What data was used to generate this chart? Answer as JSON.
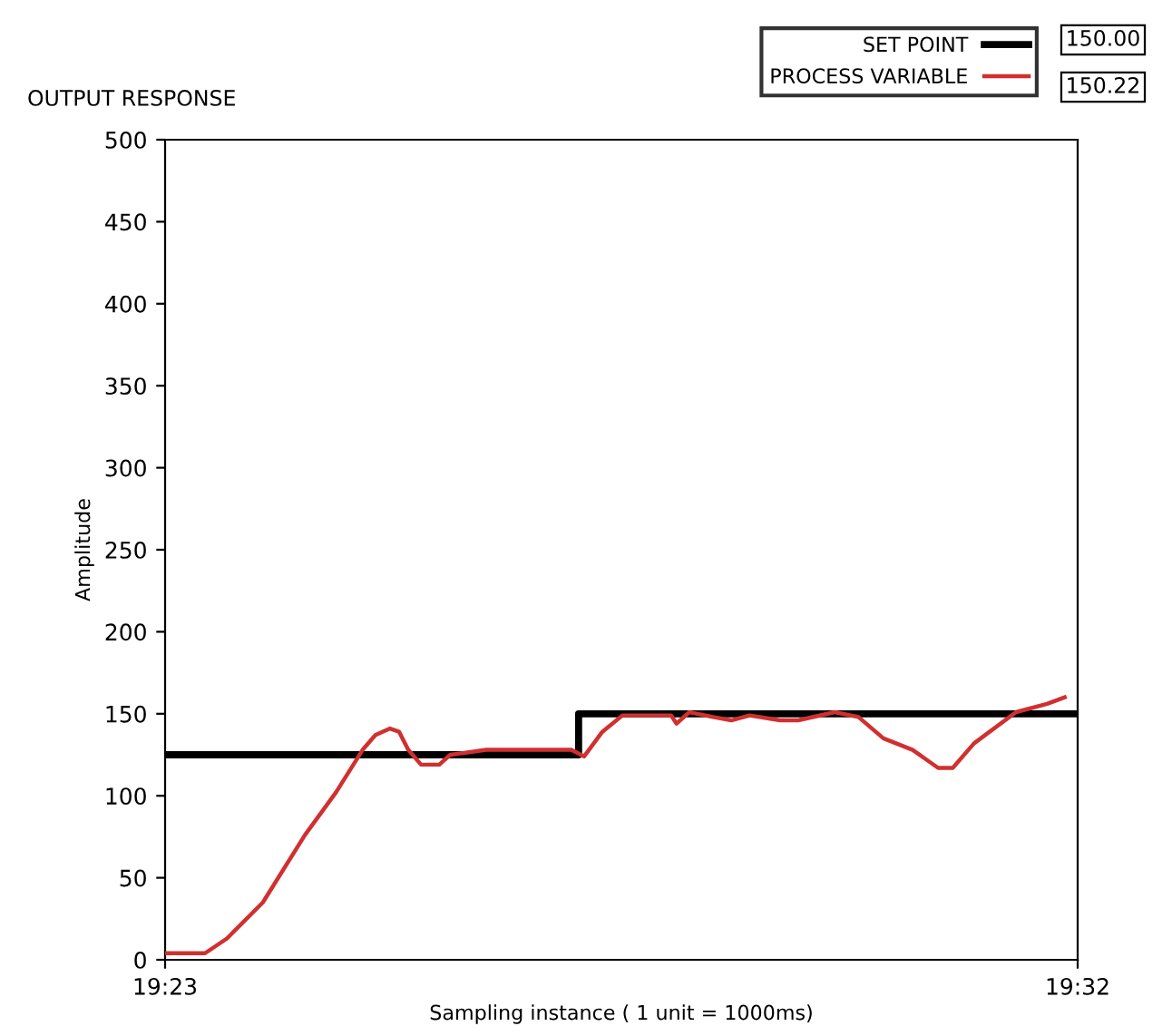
{
  "chart_data": {
    "type": "line",
    "title": "OUTPUT RESPONSE",
    "xlabel": "Sampling instance ( 1 unit = 1000ms)",
    "ylabel": "Amplitude",
    "xlim": [
      19.38333,
      19.53333
    ],
    "xticks": [
      {
        "value": 19.38333,
        "label": "19:23"
      },
      {
        "value": 19.53333,
        "label": "19:32"
      }
    ],
    "ylim": [
      0,
      500
    ],
    "yticks": [
      0,
      50,
      100,
      150,
      200,
      250,
      300,
      350,
      400,
      450,
      500
    ],
    "grid": false,
    "legend": "top right",
    "annotations": [
      "150.00",
      "150.22"
    ],
    "series": [
      {
        "name": "SET POINT",
        "color": "#000000",
        "x": [
          19.38333,
          19.4513,
          19.4513,
          19.53333
        ],
        "values": [
          125,
          125,
          150,
          150
        ]
      },
      {
        "name": "PROCESS VARIABLE",
        "color": "#d03030",
        "x": [
          19.3836,
          19.3899,
          19.3935,
          19.3994,
          19.4063,
          19.4114,
          19.4158,
          19.4179,
          19.4203,
          19.4218,
          19.4233,
          19.4254,
          19.4284,
          19.4302,
          19.4361,
          19.4451,
          19.4501,
          19.4522,
          19.4552,
          19.4585,
          19.4665,
          19.4674,
          19.4695,
          19.4734,
          19.4764,
          19.4794,
          19.4844,
          19.4874,
          19.4934,
          19.4973,
          19.5014,
          19.5062,
          19.5104,
          19.5128,
          19.5163,
          19.5232,
          19.5283,
          19.5312
        ],
        "values": [
          4,
          4,
          13,
          35,
          76,
          102,
          128,
          137,
          141,
          139,
          128,
          119,
          119,
          125,
          128,
          128,
          128,
          124,
          139,
          149,
          149,
          144,
          151,
          148,
          146,
          149,
          146,
          146,
          151,
          148,
          135,
          128,
          117,
          117,
          132,
          151,
          156,
          160
        ]
      }
    ]
  }
}
